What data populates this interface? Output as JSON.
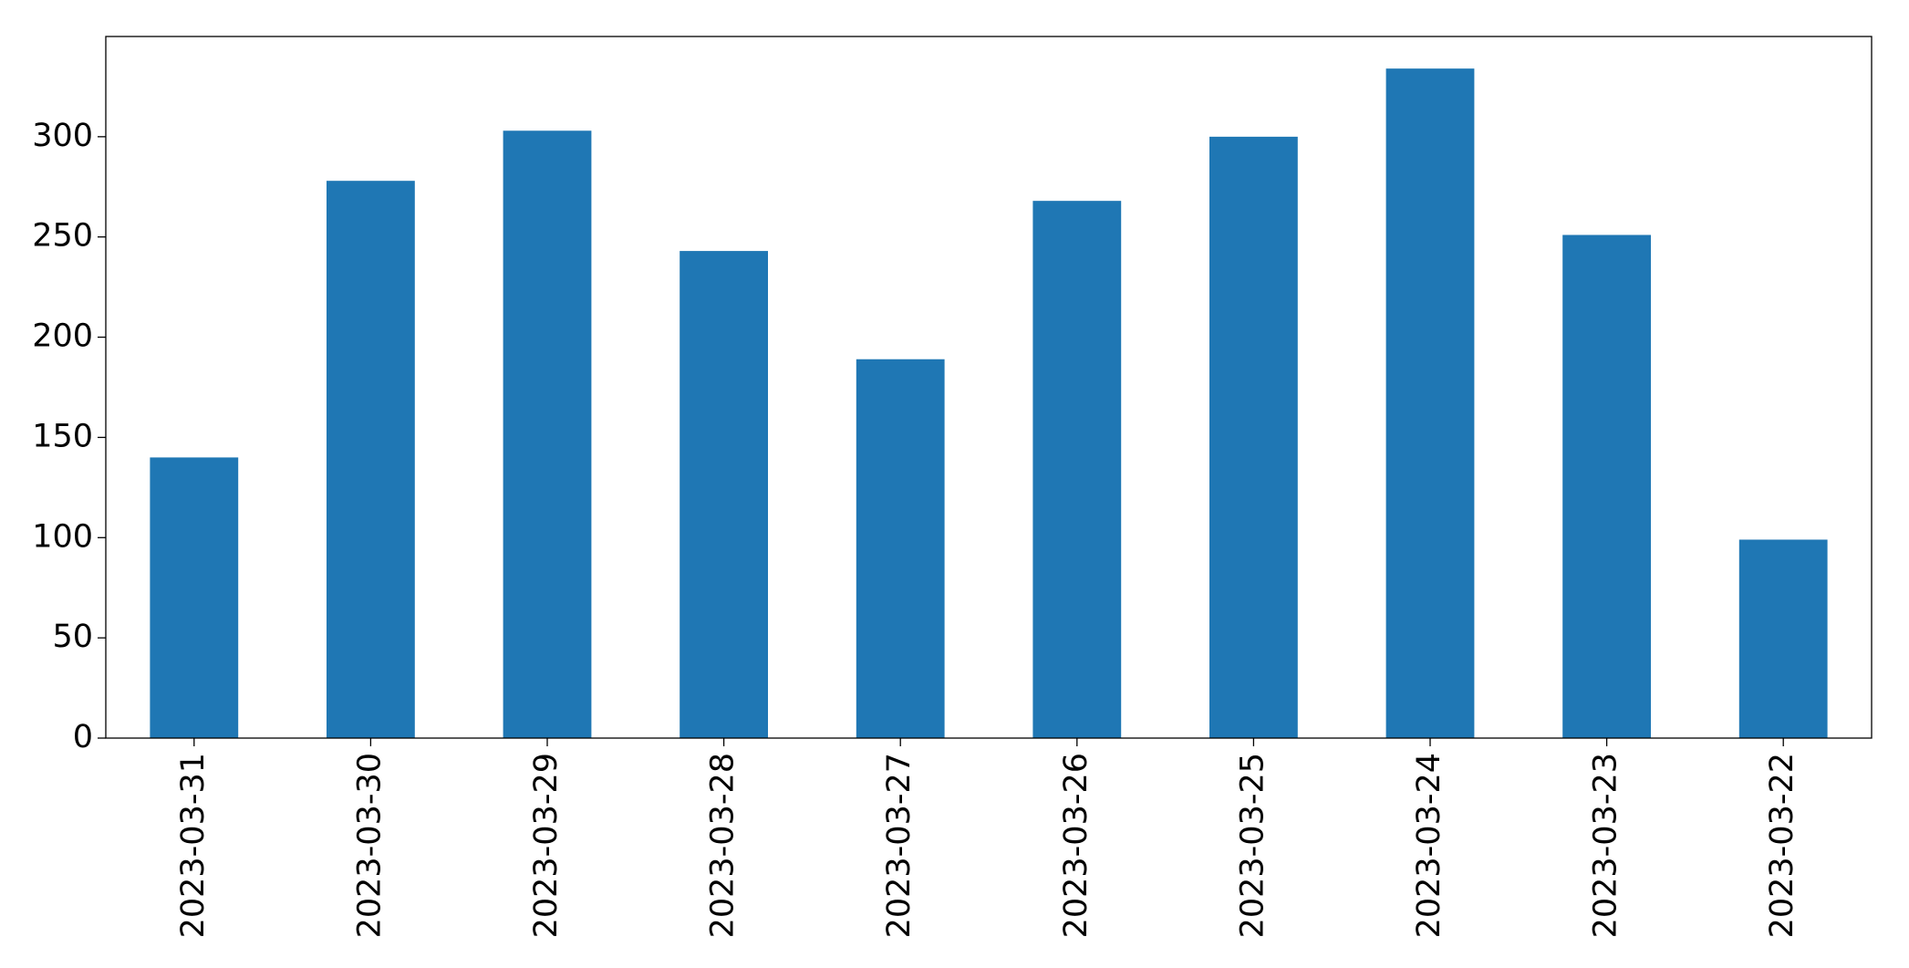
{
  "chart_data": {
    "type": "bar",
    "categories": [
      "2023-03-31",
      "2023-03-30",
      "2023-03-29",
      "2023-03-28",
      "2023-03-27",
      "2023-03-26",
      "2023-03-25",
      "2023-03-24",
      "2023-03-23",
      "2023-03-22"
    ],
    "values": [
      140,
      278,
      303,
      243,
      189,
      268,
      300,
      334,
      251,
      99
    ],
    "color": "#1f77b4",
    "ylim": [
      0,
      350
    ],
    "yticks": [
      0,
      50,
      100,
      150,
      200,
      250,
      300
    ],
    "grid": false
  }
}
